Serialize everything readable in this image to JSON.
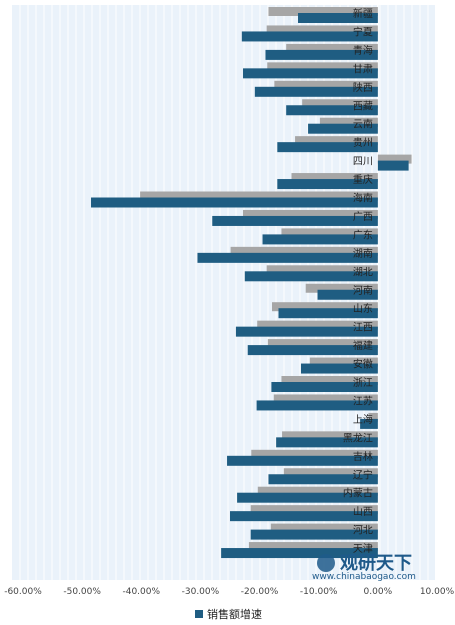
{
  "chart_data": {
    "type": "bar",
    "orientation": "horizontal",
    "categories": [
      "新疆",
      "宁夏",
      "青海",
      "甘肃",
      "陕西",
      "西藏",
      "云南",
      "贵州",
      "四川",
      "重庆",
      "海南",
      "广西",
      "广东",
      "湖南",
      "湖北",
      "河南",
      "山东",
      "江西",
      "福建",
      "安徽",
      "浙江",
      "江苏",
      "上海",
      "黑龙江",
      "吉林",
      "辽宁",
      "内蒙古",
      "山西",
      "河北",
      "天津"
    ],
    "series": [
      {
        "name": "",
        "values": [
          -18.5,
          -18.8,
          -15.5,
          -18.7,
          -17.5,
          -12.8,
          -9.8,
          -14.0,
          5.7,
          -14.6,
          -40.2,
          -22.8,
          -16.3,
          -24.9,
          -18.8,
          -12.2,
          -17.9,
          -20.4,
          -18.6,
          -11.5,
          -16.3,
          -17.6,
          -1.6,
          -16.2,
          -21.4,
          -15.9,
          -20.3,
          -21.5,
          -18.1,
          -21.8
        ]
      },
      {
        "name": "销售额增速",
        "values": [
          -13.5,
          -23.0,
          -19.0,
          -22.8,
          -20.8,
          -15.5,
          -11.8,
          -17.0,
          5.2,
          -17.0,
          -48.5,
          -28.0,
          -19.5,
          -30.5,
          -22.5,
          -10.2,
          -16.8,
          -24.0,
          -22.0,
          -13.0,
          -18.0,
          -20.5,
          -3.0,
          -17.2,
          -25.5,
          -18.5,
          -23.8,
          -25.0,
          -21.5,
          -26.5
        ]
      }
    ],
    "xlim": [
      -60,
      10
    ],
    "xticks": [
      "-60.00%",
      "-50.00%",
      "-40.00%",
      "-30.00%",
      "-20.00%",
      "-10.00%",
      "0.00%",
      "10.00%"
    ],
    "colors": [
      "#a6a6a6",
      "#1f5d82"
    ],
    "legend": [
      "销售额增速"
    ],
    "grid": true,
    "legend_position": "bottom"
  },
  "watermark": {
    "name": "观研天下",
    "url": "www.chinabaogao.com"
  }
}
